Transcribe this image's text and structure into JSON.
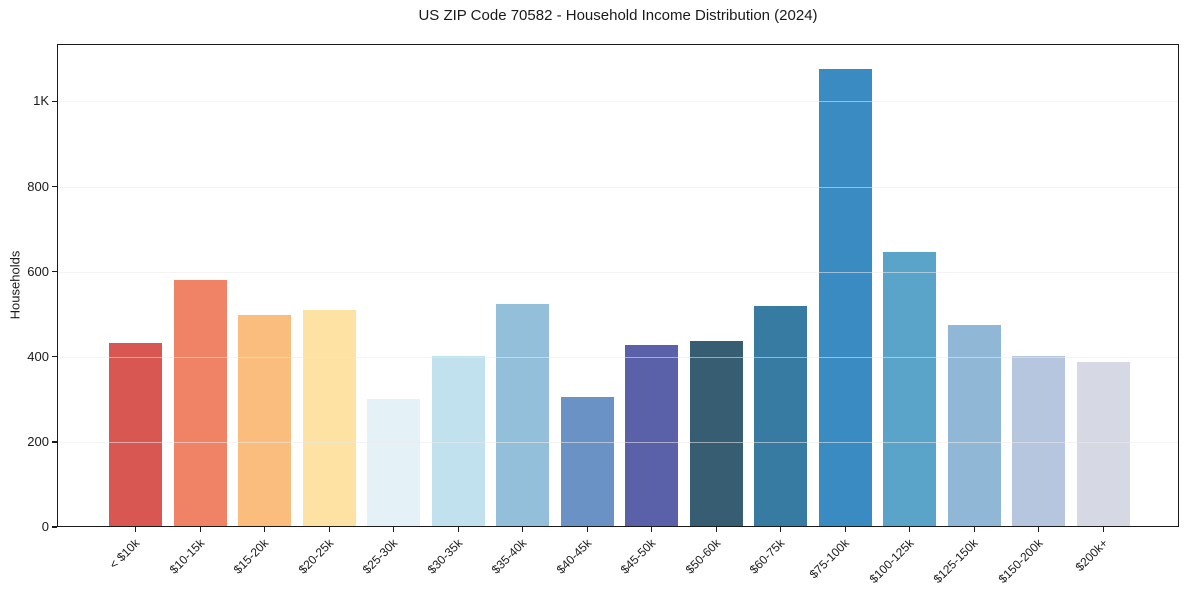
{
  "figure": {
    "title": "US ZIP Code 70582 - Household Income Distribution (2024)"
  },
  "chart_data": {
    "type": "bar",
    "title": "US ZIP Code 70582 - Household Income Distribution (2024)",
    "xlabel": "",
    "ylabel": "Households",
    "categories": [
      "< $10k",
      "$10-15k",
      "$15-20k",
      "$20-25k",
      "$25-30k",
      "$30-35k",
      "$35-40k",
      "$40-45k",
      "$45-50k",
      "$50-60k",
      "$60-75k",
      "$75-100k",
      "$100-125k",
      "$125-150k",
      "$150-200k",
      "$200k+"
    ],
    "values": [
      432,
      581,
      498,
      509,
      301,
      401,
      524,
      305,
      427,
      436,
      520,
      1076,
      647,
      474,
      402,
      388
    ],
    "bar_colors": [
      "#d95752",
      "#f08365",
      "#fabd7d",
      "#fde2a3",
      "#e4f2f7",
      "#c0e1ed",
      "#93bfdb",
      "#6b92c4",
      "#5b61a9",
      "#365d72",
      "#377ba3",
      "#3a8bc2",
      "#5ba4c9",
      "#90b8d6",
      "#b5c6de",
      "#d6d8e4"
    ],
    "yticks": {
      "values": [
        0,
        200,
        400,
        600,
        800,
        1000
      ],
      "labels": [
        "0",
        "200",
        "400",
        "600",
        "800",
        "1K"
      ]
    },
    "ylim": [
      0,
      1135
    ],
    "grid": "horizontal",
    "legend": "none",
    "colors": {
      "background": "#ffffff",
      "axis": "#1a1a1a",
      "grid": "#ebebeb",
      "grid_over_bars": "rgba(235,235,235,0.55)",
      "text": "#1a1a1a"
    }
  }
}
